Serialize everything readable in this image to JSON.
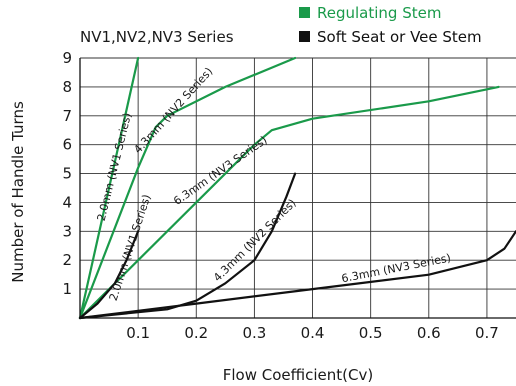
{
  "chart_data": {
    "type": "line",
    "title": "NV1,NV2,NV3 Series",
    "xlabel": "Flow Coefficient(Cv)",
    "ylabel": "Number of Handle Turns",
    "xlim": [
      0,
      0.75
    ],
    "ylim": [
      0,
      9
    ],
    "x_ticks": [
      "0.1",
      "0.2",
      "0.3",
      "0.4",
      "0.5",
      "0.6",
      "0.7"
    ],
    "y_ticks": [
      "1",
      "2",
      "3",
      "4",
      "5",
      "6",
      "7",
      "8",
      "9"
    ],
    "grid": true,
    "legend": [
      {
        "name": "Regulating Stem",
        "color": "#1a9a4a"
      },
      {
        "name": "Soft Seat or Vee Stem",
        "color": "#111111"
      }
    ],
    "series": [
      {
        "name": "2.0mm (NV1 Series)",
        "stem": "Regulating Stem",
        "color": "#1a9a4a",
        "points": [
          [
            0,
            0
          ],
          [
            0.1,
            9.0
          ]
        ]
      },
      {
        "name": "4.3mm (NV2 Series)",
        "stem": "Regulating Stem",
        "color": "#1a9a4a",
        "points": [
          [
            0,
            0
          ],
          [
            0.1,
            5.2
          ],
          [
            0.13,
            6.6
          ],
          [
            0.15,
            7.0
          ],
          [
            0.25,
            8.0
          ],
          [
            0.37,
            9.0
          ]
        ]
      },
      {
        "name": "6.3mm (NV3 Series)",
        "stem": "Regulating Stem",
        "color": "#1a9a4a",
        "points": [
          [
            0,
            0
          ],
          [
            0.3,
            6.0
          ],
          [
            0.33,
            6.5
          ],
          [
            0.4,
            6.9
          ],
          [
            0.6,
            7.5
          ],
          [
            0.72,
            8.0
          ]
        ]
      },
      {
        "name": "2.0mm (NV1 Series)",
        "stem": "Soft Seat or Vee Stem",
        "color": "#111111",
        "points": [
          [
            0,
            0
          ],
          [
            0.03,
            0.5
          ],
          [
            0.06,
            1.2
          ],
          [
            0.08,
            2.0
          ],
          [
            0.1,
            3.0
          ]
        ]
      },
      {
        "name": "4.3mm (NV2 Series)",
        "stem": "Soft Seat or Vee Stem",
        "color": "#111111",
        "points": [
          [
            0,
            0
          ],
          [
            0.15,
            0.3
          ],
          [
            0.2,
            0.6
          ],
          [
            0.25,
            1.2
          ],
          [
            0.3,
            2.0
          ],
          [
            0.33,
            3.0
          ],
          [
            0.355,
            4.2
          ],
          [
            0.37,
            5.0
          ]
        ]
      },
      {
        "name": "6.3mm (NV3 Series)",
        "stem": "Soft Seat or Vee Stem",
        "color": "#111111",
        "points": [
          [
            0,
            0
          ],
          [
            0.2,
            0.5
          ],
          [
            0.4,
            1.0
          ],
          [
            0.6,
            1.5
          ],
          [
            0.7,
            2.0
          ],
          [
            0.73,
            2.4
          ],
          [
            0.75,
            3.0
          ]
        ]
      }
    ],
    "annotations": [
      {
        "text": "2.0mm (NV1 Series)",
        "x": 0.065,
        "y": 5.2,
        "rotate": -76
      },
      {
        "text": "4.3mm (NV2 Series)",
        "x": 0.165,
        "y": 7.1,
        "rotate": -48
      },
      {
        "text": "6.3mm (NV3 Series)",
        "x": 0.245,
        "y": 5.0,
        "rotate": -35
      },
      {
        "text": "2.0mm (NV1 Series)",
        "x": 0.092,
        "y": 2.4,
        "rotate": -72
      },
      {
        "text": "4.3mm (NV2 Series)",
        "x": 0.305,
        "y": 2.6,
        "rotate": -45
      },
      {
        "text": "6.3mm (NV3 Series)",
        "x": 0.545,
        "y": 1.6,
        "rotate": -11
      }
    ]
  }
}
